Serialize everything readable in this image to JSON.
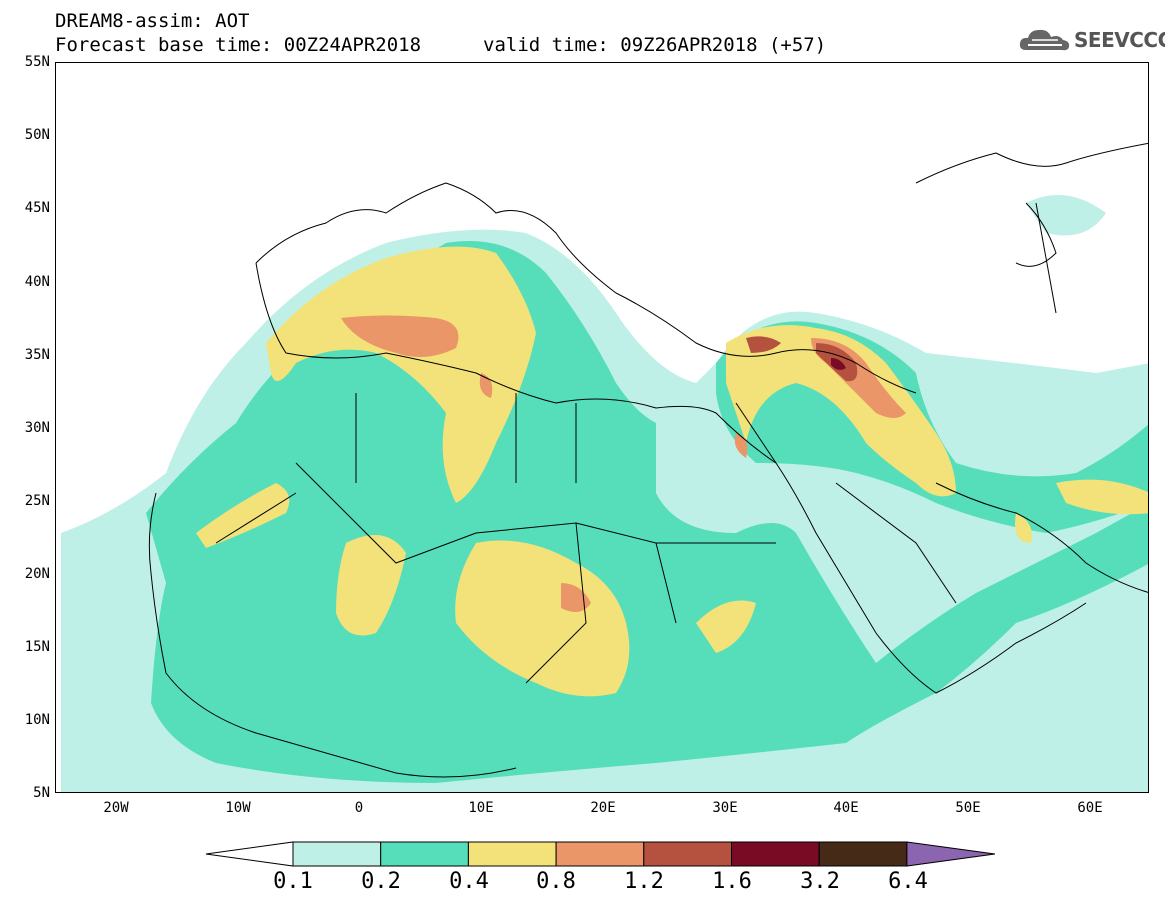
{
  "header": {
    "line1": "DREAM8-assim: AOT",
    "line2": "Forecast base time: 00Z24APR2018",
    "valid": "valid time: 09Z26APR2018 (+57)"
  },
  "logo": {
    "text": "SEEVCCC",
    "icon": "cloud-icon"
  },
  "map": {
    "lat_labels": [
      "55N",
      "50N",
      "45N",
      "40N",
      "35N",
      "30N",
      "25N",
      "20N",
      "15N",
      "10N",
      "5N"
    ],
    "lon_labels": [
      "20W",
      "10W",
      "0",
      "10E",
      "20E",
      "30E",
      "40E",
      "50E",
      "60E"
    ],
    "lon_range": [
      -25,
      65
    ],
    "lat_range": [
      5,
      55
    ]
  },
  "legend": {
    "labels": [
      "0.1",
      "0.2",
      "0.4",
      "0.8",
      "1.2",
      "1.6",
      "3.2",
      "6.4"
    ],
    "colors": [
      "#ffffff",
      "#bff0e8",
      "#55deb9",
      "#f3e27a",
      "#ea9668",
      "#b5513f",
      "#7a0b25",
      "#452b17",
      "#8c65b0"
    ]
  },
  "colors": {
    "aot_0_1": "#bff0e8",
    "aot_0_2": "#55deb9",
    "aot_0_4": "#f3e27a",
    "aot_0_8": "#ea9668",
    "aot_1_2": "#b5513f",
    "aot_1_6": "#7a0b25"
  }
}
